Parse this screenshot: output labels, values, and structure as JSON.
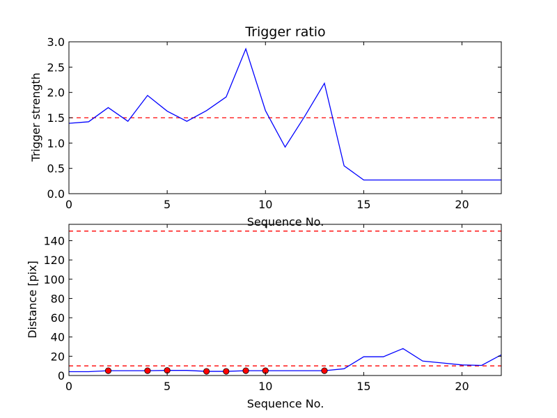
{
  "chart_data": [
    {
      "type": "line",
      "title": "Trigger ratio",
      "xlabel": "Sequence No.",
      "ylabel": "Trigger strength",
      "xlim": [
        0,
        22
      ],
      "ylim": [
        0,
        3.0
      ],
      "xticks": [
        0,
        5,
        10,
        15,
        20
      ],
      "xtick_labels": [
        "0",
        "5",
        "10",
        "15",
        "20"
      ],
      "yticks": [
        0,
        0.5,
        1.0,
        1.5,
        2.0,
        2.5,
        3.0
      ],
      "ytick_labels": [
        "0.0",
        "0.5",
        "1.0",
        "1.5",
        "2.0",
        "2.5",
        "3.0"
      ],
      "grid": false,
      "series": [
        {
          "color": "#0000ff",
          "x": [
            0,
            1,
            2,
            3,
            4,
            5,
            6,
            7,
            8,
            9,
            10,
            11,
            12,
            13,
            14,
            15,
            16,
            17,
            18,
            19,
            20,
            21,
            22
          ],
          "values": [
            1.39,
            1.42,
            1.7,
            1.43,
            1.94,
            1.63,
            1.43,
            1.64,
            1.91,
            2.86,
            1.64,
            0.92,
            1.53,
            2.18,
            0.55,
            0.27,
            0.27,
            0.27,
            0.27,
            0.27,
            0.27,
            0.27,
            0.27
          ]
        }
      ],
      "reference_lines": [
        {
          "y": 1.5,
          "color": "#ff0000",
          "style": "dashed"
        }
      ]
    },
    {
      "type": "line",
      "title": "",
      "xlabel": "Sequence No.",
      "ylabel": "Distance [pix]",
      "xlim": [
        0,
        22
      ],
      "ylim": [
        0,
        157
      ],
      "xticks": [
        0,
        5,
        10,
        15,
        20
      ],
      "xtick_labels": [
        "0",
        "5",
        "10",
        "15",
        "20"
      ],
      "yticks": [
        0,
        20,
        40,
        60,
        80,
        100,
        120,
        140
      ],
      "ytick_labels": [
        "0",
        "20",
        "40",
        "60",
        "80",
        "100",
        "120",
        "140"
      ],
      "grid": false,
      "series": [
        {
          "color": "#0000ff",
          "x": [
            0,
            1,
            2,
            3,
            4,
            5,
            6,
            7,
            8,
            9,
            10,
            11,
            12,
            13,
            14,
            15,
            16,
            17,
            18,
            19,
            20,
            21,
            22
          ],
          "values": [
            4,
            4,
            5,
            5,
            5,
            5.3,
            5.3,
            4.3,
            4.3,
            5,
            5,
            5,
            5,
            5,
            7,
            19.5,
            19.5,
            28,
            15,
            13,
            11,
            10.5,
            21.5
          ]
        }
      ],
      "markers": {
        "color": "#ff0000",
        "x": [
          2,
          4,
          5,
          7,
          8,
          9,
          10,
          13
        ],
        "values": [
          5,
          5,
          5.3,
          4.3,
          4.3,
          5,
          5,
          5
        ]
      },
      "reference_lines": [
        {
          "y": 150,
          "color": "#ff0000",
          "style": "dashed"
        },
        {
          "y": 10,
          "color": "#ff0000",
          "style": "dashed"
        }
      ]
    }
  ]
}
